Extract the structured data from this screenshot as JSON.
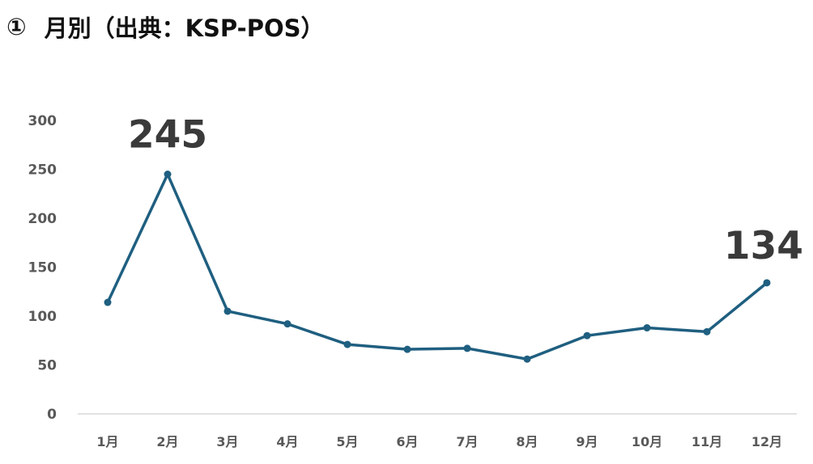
{
  "header": {
    "number": "①",
    "title": "月別（出典：KSP-POS）"
  },
  "colors": {
    "line": "#1f5f80",
    "axis": "#d9d9d9",
    "tick_text": "#595959",
    "label_text": "#3a3a3a"
  },
  "chart_data": {
    "type": "line",
    "title": "",
    "xlabel": "",
    "ylabel": "",
    "categories": [
      "1月",
      "2月",
      "3月",
      "4月",
      "5月",
      "6月",
      "7月",
      "8月",
      "9月",
      "10月",
      "11月",
      "12月"
    ],
    "series": [
      {
        "values": [
          114,
          245,
          105,
          92,
          71,
          66,
          67,
          56,
          80,
          88,
          84,
          134
        ]
      }
    ],
    "ylim": [
      0,
      300
    ],
    "yticks": [
      0,
      50,
      100,
      150,
      200,
      250,
      300
    ],
    "grid": false,
    "legend": "none",
    "data_labels": [
      {
        "category": "2月",
        "text": "245"
      },
      {
        "category": "12月",
        "text": "134"
      }
    ]
  }
}
